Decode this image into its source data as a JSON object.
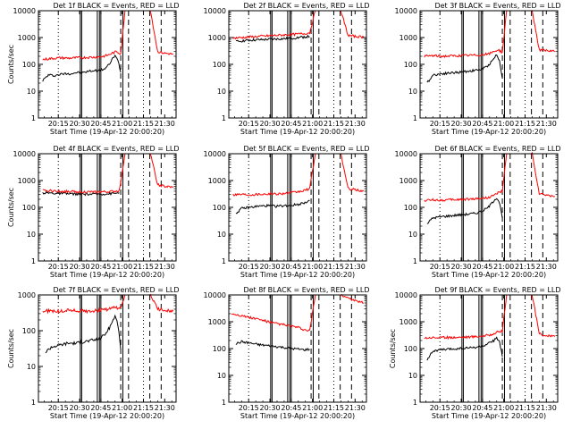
{
  "figure": {
    "x_tick_labels": [
      "20:15",
      "20:30",
      "20:45",
      "21:00",
      "21:15",
      "21:30"
    ],
    "y_tick_labels": [
      "1",
      "10",
      "100",
      "1000",
      "10000"
    ],
    "colors": {
      "events": "#000000",
      "lld": "#ff0000",
      "axes": "#000000",
      "background": "#ffffff"
    }
  },
  "chart_data": [
    {
      "type": "line",
      "title": "Det 1f BLACK = Events, RED = LLD",
      "xlabel": "Start Time (19-Apr-12 20:00:20)",
      "ylabel": "Counts/sec",
      "yscale": "log",
      "ylim": [
        1,
        10000
      ],
      "xlim": [
        "20:01",
        "21:38"
      ],
      "grid": false,
      "series": [
        {
          "name": "Events",
          "color": "#000000",
          "x": [
            "20:04",
            "20:08",
            "20:12",
            "20:16",
            "20:20",
            "20:24",
            "20:28",
            "20:32",
            "20:36",
            "20:40",
            "20:44",
            "20:48",
            "20:51",
            "20:53",
            "20:55",
            "20:57",
            "20:59"
          ],
          "values": [
            25,
            40,
            38,
            42,
            45,
            45,
            50,
            48,
            55,
            58,
            60,
            70,
            100,
            160,
            200,
            150,
            50
          ]
        },
        {
          "name": "LLD",
          "color": "#ff0000",
          "x": [
            "20:04",
            "20:10",
            "20:16",
            "20:22",
            "20:28",
            "20:34",
            "20:40",
            "20:46",
            "20:50",
            "20:53",
            "20:56",
            "20:59",
            "21:02",
            "21:05",
            "21:10",
            "21:15",
            "21:20",
            "21:25",
            "21:30",
            "21:36"
          ],
          "values": [
            150,
            165,
            175,
            170,
            175,
            180,
            185,
            195,
            220,
            260,
            300,
            250,
            10000,
            10000,
            10000,
            10000,
            10000,
            300,
            260,
            240
          ]
        }
      ]
    },
    {
      "type": "line",
      "title": "Det 2f BLACK = Events, RED = LLD",
      "xlabel": "Start Time (19-Apr-12 20:00:20)",
      "ylabel": "",
      "yscale": "log",
      "ylim": [
        1,
        10000
      ],
      "xlim": [
        "20:01",
        "21:38"
      ],
      "grid": false,
      "series": [
        {
          "name": "Events",
          "color": "#000000",
          "x": [
            "20:06",
            "20:10",
            "20:16",
            "20:22",
            "20:28",
            "20:34",
            "20:40",
            "20:46",
            "20:50",
            "20:54",
            "20:58"
          ],
          "values": [
            700,
            750,
            800,
            820,
            850,
            880,
            900,
            950,
            1000,
            1050,
            1100
          ]
        },
        {
          "name": "LLD",
          "color": "#ff0000",
          "x": [
            "20:04",
            "20:10",
            "20:16",
            "20:22",
            "20:28",
            "20:34",
            "20:40",
            "20:46",
            "20:50",
            "20:54",
            "20:58",
            "21:02",
            "21:05",
            "21:10",
            "21:15",
            "21:20",
            "21:25",
            "21:30",
            "21:36"
          ],
          "values": [
            950,
            1000,
            1050,
            1100,
            1150,
            1200,
            1250,
            1300,
            1350,
            1400,
            1500,
            10000,
            10000,
            10000,
            10000,
            10000,
            1200,
            1100,
            1050
          ]
        }
      ]
    },
    {
      "type": "line",
      "title": "Det 3f BLACK = Events, RED = LLD",
      "xlabel": "Start Time (19-Apr-12 20:00:20)",
      "ylabel": "",
      "yscale": "log",
      "ylim": [
        1,
        10000
      ],
      "xlim": [
        "20:01",
        "21:38"
      ],
      "grid": false,
      "series": [
        {
          "name": "Events",
          "color": "#000000",
          "x": [
            "20:06",
            "20:10",
            "20:16",
            "20:22",
            "20:28",
            "20:34",
            "20:40",
            "20:44",
            "20:48",
            "20:51",
            "20:53",
            "20:55",
            "20:57",
            "20:59"
          ],
          "values": [
            20,
            40,
            45,
            48,
            50,
            55,
            60,
            65,
            80,
            120,
            180,
            220,
            130,
            30
          ]
        },
        {
          "name": "LLD",
          "color": "#ff0000",
          "x": [
            "20:04",
            "20:10",
            "20:16",
            "20:22",
            "20:28",
            "20:34",
            "20:40",
            "20:46",
            "20:50",
            "20:53",
            "20:56",
            "20:59",
            "21:02",
            "21:05",
            "21:10",
            "21:15",
            "21:20",
            "21:25",
            "21:30",
            "21:36"
          ],
          "values": [
            200,
            210,
            200,
            205,
            210,
            215,
            220,
            230,
            250,
            300,
            350,
            280,
            10000,
            10000,
            10000,
            10000,
            10000,
            350,
            320,
            300
          ]
        }
      ]
    },
    {
      "type": "line",
      "title": "Det 4f BLACK = Events, RED = LLD",
      "xlabel": "Start Time (19-Apr-12 20:00:20)",
      "ylabel": "Counts/sec",
      "yscale": "log",
      "ylim": [
        1,
        10000
      ],
      "xlim": [
        "20:01",
        "21:38"
      ],
      "grid": false,
      "series": [
        {
          "name": "Events",
          "color": "#000000",
          "x": [
            "20:04",
            "20:10",
            "20:16",
            "20:22",
            "20:28",
            "20:34",
            "20:40",
            "20:46",
            "20:50",
            "20:54",
            "20:58"
          ],
          "values": [
            350,
            340,
            330,
            320,
            315,
            310,
            310,
            315,
            320,
            330,
            350
          ]
        },
        {
          "name": "LLD",
          "color": "#ff0000",
          "x": [
            "20:04",
            "20:10",
            "20:16",
            "20:22",
            "20:28",
            "20:34",
            "20:40",
            "20:46",
            "20:50",
            "20:54",
            "20:58",
            "21:02",
            "21:05",
            "21:10",
            "21:15",
            "21:20",
            "21:25",
            "21:30",
            "21:36"
          ],
          "values": [
            420,
            410,
            400,
            390,
            380,
            375,
            370,
            375,
            380,
            390,
            420,
            10000,
            10000,
            10000,
            10000,
            10000,
            700,
            600,
            550
          ]
        }
      ]
    },
    {
      "type": "line",
      "title": "Det 5f BLACK = Events, RED = LLD",
      "xlabel": "Start Time (19-Apr-12 20:00:20)",
      "ylabel": "",
      "yscale": "log",
      "ylim": [
        1,
        10000
      ],
      "xlim": [
        "20:01",
        "21:38"
      ],
      "grid": false,
      "series": [
        {
          "name": "Events",
          "color": "#000000",
          "x": [
            "20:06",
            "20:10",
            "20:16",
            "20:22",
            "20:28",
            "20:34",
            "20:40",
            "20:46",
            "20:50",
            "20:54",
            "20:58"
          ],
          "values": [
            60,
            90,
            100,
            110,
            115,
            110,
            115,
            120,
            130,
            150,
            180
          ]
        },
        {
          "name": "LLD",
          "color": "#ff0000",
          "x": [
            "20:04",
            "20:10",
            "20:16",
            "20:22",
            "20:28",
            "20:34",
            "20:40",
            "20:46",
            "20:50",
            "20:54",
            "20:58",
            "21:02",
            "21:05",
            "21:10",
            "21:15",
            "21:20",
            "21:25",
            "21:30",
            "21:36"
          ],
          "values": [
            300,
            310,
            300,
            310,
            320,
            320,
            330,
            350,
            380,
            420,
            500,
            10000,
            10000,
            10000,
            10000,
            10000,
            500,
            450,
            400
          ]
        }
      ]
    },
    {
      "type": "line",
      "title": "Det 6f BLACK = Events, RED = LLD",
      "xlabel": "Start Time (19-Apr-12 20:00:20)",
      "ylabel": "",
      "yscale": "log",
      "ylim": [
        1,
        10000
      ],
      "xlim": [
        "20:01",
        "21:38"
      ],
      "grid": false,
      "series": [
        {
          "name": "Events",
          "color": "#000000",
          "x": [
            "20:06",
            "20:10",
            "20:16",
            "20:22",
            "20:28",
            "20:34",
            "20:40",
            "20:44",
            "20:48",
            "20:51",
            "20:53",
            "20:55",
            "20:57",
            "20:59"
          ],
          "values": [
            25,
            40,
            45,
            48,
            52,
            55,
            60,
            70,
            90,
            130,
            180,
            230,
            150,
            40
          ]
        },
        {
          "name": "LLD",
          "color": "#ff0000",
          "x": [
            "20:04",
            "20:10",
            "20:16",
            "20:22",
            "20:28",
            "20:34",
            "20:40",
            "20:46",
            "20:50",
            "20:53",
            "20:56",
            "20:59",
            "21:02",
            "21:05",
            "21:10",
            "21:15",
            "21:20",
            "21:25",
            "21:30",
            "21:36"
          ],
          "values": [
            180,
            190,
            185,
            190,
            195,
            200,
            210,
            220,
            240,
            280,
            350,
            400,
            10000,
            10000,
            10000,
            10000,
            10000,
            320,
            280,
            260
          ]
        }
      ]
    },
    {
      "type": "line",
      "title": "Det 7f BLACK = Events, RED = LLD",
      "xlabel": "Start Time (19-Apr-12 20:00:20)",
      "ylabel": "Counts/sec",
      "yscale": "log",
      "ylim": [
        1,
        1000
      ],
      "xlim": [
        "20:01",
        "21:38"
      ],
      "grid": false,
      "series": [
        {
          "name": "Events",
          "color": "#000000",
          "x": [
            "20:06",
            "20:10",
            "20:16",
            "20:22",
            "20:28",
            "20:34",
            "20:40",
            "20:44",
            "20:48",
            "20:51",
            "20:53",
            "20:55",
            "20:57",
            "20:59"
          ],
          "values": [
            25,
            35,
            40,
            45,
            45,
            50,
            55,
            60,
            80,
            120,
            180,
            260,
            150,
            30
          ]
        },
        {
          "name": "LLD",
          "color": "#ff0000",
          "x": [
            "20:04",
            "20:10",
            "20:16",
            "20:22",
            "20:28",
            "20:34",
            "20:40",
            "20:46",
            "20:50",
            "20:53",
            "20:56",
            "20:59",
            "21:02",
            "21:05",
            "21:10",
            "21:15",
            "21:20",
            "21:25",
            "21:30",
            "21:36"
          ],
          "values": [
            350,
            360,
            340,
            380,
            360,
            350,
            360,
            380,
            400,
            420,
            450,
            400,
            1000,
            1000,
            1000,
            1000,
            1000,
            400,
            380,
            350
          ]
        }
      ]
    },
    {
      "type": "line",
      "title": "Det 8f BLACK = Events, RED = LLD",
      "xlabel": "Start Time (19-Apr-12 20:00:20)",
      "ylabel": "",
      "yscale": "log",
      "ylim": [
        1,
        10000
      ],
      "xlim": [
        "20:01",
        "21:38"
      ],
      "grid": false,
      "series": [
        {
          "name": "Events",
          "color": "#000000",
          "x": [
            "20:06",
            "20:10",
            "20:16",
            "20:22",
            "20:28",
            "20:34",
            "20:40",
            "20:46",
            "20:50",
            "20:54",
            "20:58"
          ],
          "values": [
            150,
            180,
            160,
            140,
            130,
            120,
            110,
            100,
            95,
            90,
            95
          ]
        },
        {
          "name": "LLD",
          "color": "#ff0000",
          "x": [
            "20:03",
            "20:08",
            "20:14",
            "20:20",
            "20:26",
            "20:32",
            "20:38",
            "20:44",
            "20:50",
            "20:54",
            "20:58",
            "21:02",
            "21:05",
            "21:10",
            "21:15",
            "21:20",
            "21:25",
            "21:30",
            "21:36"
          ],
          "values": [
            2000,
            1800,
            1500,
            1300,
            1100,
            900,
            800,
            700,
            600,
            500,
            450,
            10000,
            10000,
            10000,
            10000,
            10000,
            8000,
            6000,
            5000
          ]
        }
      ]
    },
    {
      "type": "line",
      "title": "Det 9f BLACK = Events, RED = LLD",
      "xlabel": "Start Time (19-Apr-12 20:00:20)",
      "ylabel": "Counts/sec",
      "yscale": "log",
      "ylim": [
        1,
        10000
      ],
      "xlim": [
        "20:01",
        "21:38"
      ],
      "grid": false,
      "series": [
        {
          "name": "Events",
          "color": "#000000",
          "x": [
            "20:06",
            "20:10",
            "20:16",
            "20:22",
            "20:28",
            "20:34",
            "20:40",
            "20:44",
            "20:48",
            "20:51",
            "20:53",
            "20:55",
            "20:57",
            "20:59"
          ],
          "values": [
            40,
            80,
            90,
            95,
            100,
            105,
            110,
            120,
            140,
            170,
            200,
            260,
            180,
            50
          ]
        },
        {
          "name": "LLD",
          "color": "#ff0000",
          "x": [
            "20:04",
            "20:10",
            "20:16",
            "20:22",
            "20:28",
            "20:34",
            "20:40",
            "20:46",
            "20:50",
            "20:53",
            "20:56",
            "20:59",
            "21:02",
            "21:05",
            "21:10",
            "21:15",
            "21:20",
            "21:25",
            "21:30",
            "21:36"
          ],
          "values": [
            250,
            260,
            255,
            260,
            265,
            270,
            280,
            300,
            320,
            360,
            420,
            450,
            10000,
            10000,
            10000,
            10000,
            10000,
            350,
            300,
            280
          ]
        }
      ]
    }
  ]
}
